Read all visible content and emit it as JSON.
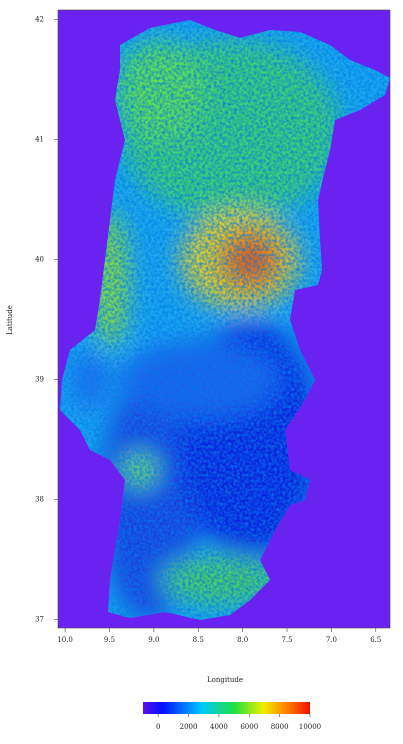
{
  "map": {
    "xlabel": "Longitude",
    "ylabel": "Latitude",
    "xlim": [
      -10.08,
      -6.34
    ],
    "ylim": [
      36.93,
      42.08
    ],
    "xticks": [
      {
        "value": -10.0,
        "label": "10.0"
      },
      {
        "value": -9.5,
        "label": "9.5"
      },
      {
        "value": -9.0,
        "label": "9.0"
      },
      {
        "value": -8.5,
        "label": "8.5"
      },
      {
        "value": -8.0,
        "label": "8.0"
      },
      {
        "value": -7.5,
        "label": "7.5"
      },
      {
        "value": -7.0,
        "label": "7.0"
      },
      {
        "value": -6.5,
        "label": "6.5"
      }
    ],
    "yticks": [
      42,
      41,
      40,
      39,
      38,
      37
    ],
    "colorbar": {
      "lim": [
        -1000,
        10000
      ],
      "ticks": [
        0,
        2000,
        4000,
        6000,
        8000,
        10000
      ]
    }
  }
}
